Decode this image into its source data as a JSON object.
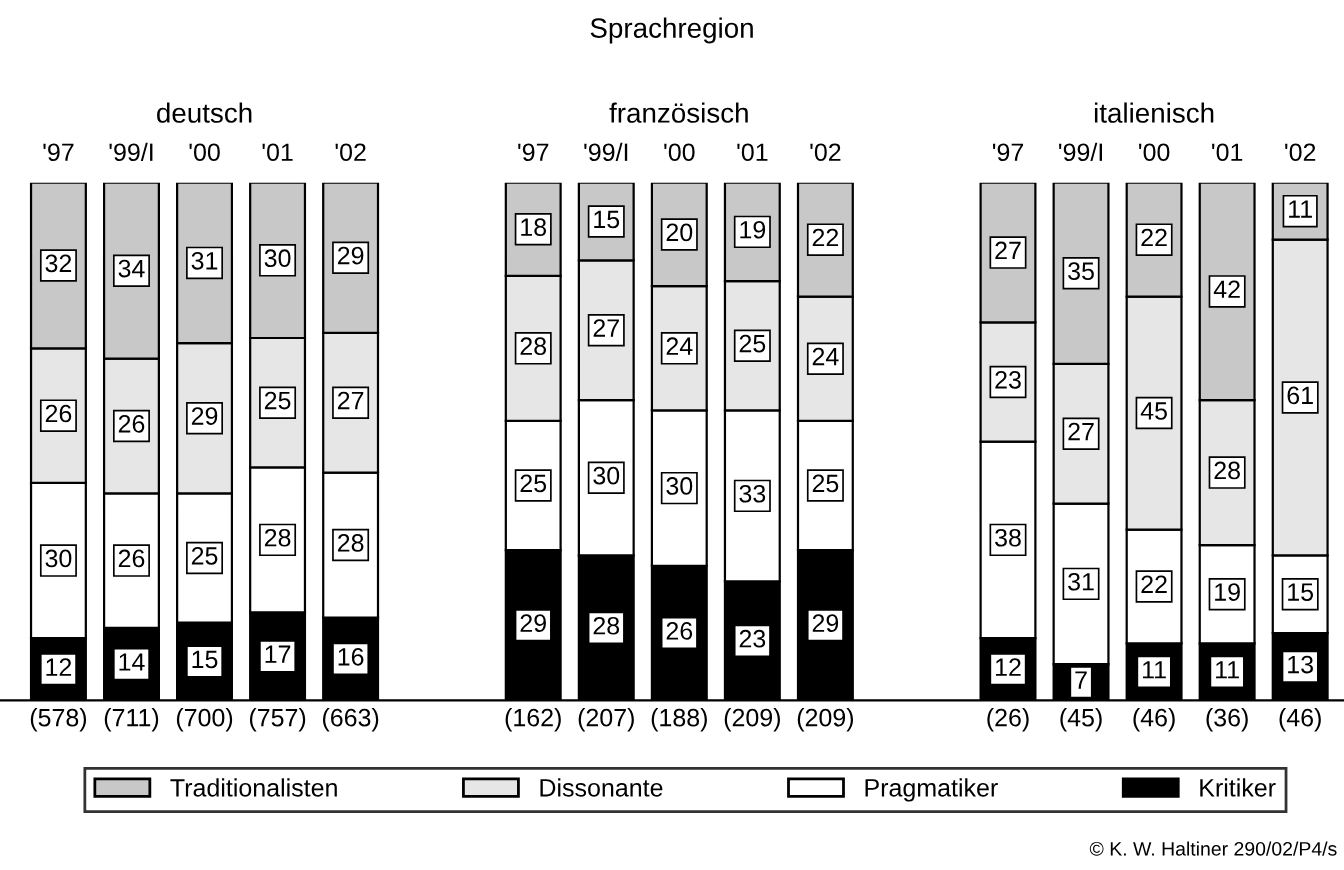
{
  "chart_data": {
    "type": "bar",
    "stacked": true,
    "data_labels": true,
    "legend": "bottom",
    "grid": false,
    "title": "Sprachregion",
    "categories": [
      "'97",
      "'99/I",
      "'00",
      "'01",
      "'02",
      "'97",
      "'99/I",
      "'00",
      "'01",
      "'02",
      "'97",
      "'99/I",
      "'00",
      "'01",
      "'02"
    ],
    "series": [
      {
        "name": "Kritiker",
        "color": "#000000",
        "values": [
          12,
          14,
          15,
          17,
          16,
          29,
          28,
          26,
          23,
          29,
          12,
          7,
          11,
          11,
          13
        ]
      },
      {
        "name": "Pragmatiker",
        "color": "#ffffff",
        "values": [
          30,
          26,
          25,
          28,
          28,
          25,
          30,
          30,
          33,
          25,
          38,
          31,
          22,
          19,
          15
        ]
      },
      {
        "name": "Dissonante",
        "color": "#e6e6e6",
        "values": [
          26,
          26,
          29,
          25,
          27,
          28,
          27,
          24,
          25,
          24,
          23,
          27,
          45,
          28,
          61
        ]
      },
      {
        "name": "Traditionalisten",
        "color": "#c8c8c8",
        "values": [
          32,
          34,
          31,
          30,
          29,
          18,
          15,
          20,
          19,
          22,
          27,
          35,
          22,
          42,
          11
        ]
      }
    ],
    "annotations": [
      "deutsch",
      "französisch",
      "italienisch",
      "(578)",
      "(711)",
      "(700)",
      "(757)",
      "(663)",
      "(162)",
      "(207)",
      "(188)",
      "(209)",
      "(209)",
      "(26)",
      "(45)",
      "(46)",
      "(36)",
      "(46)",
      "© K. W. Haltiner 290/02/P4/s"
    ]
  }
}
